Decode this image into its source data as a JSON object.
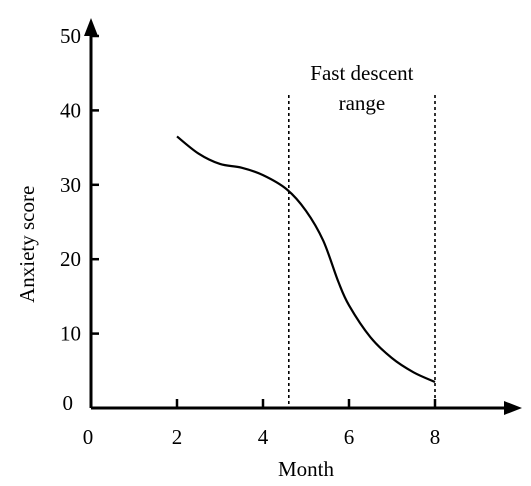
{
  "chart_data": {
    "type": "line",
    "title": "",
    "xlabel": "Month",
    "ylabel": "Anxiety score",
    "xlim": [
      0,
      9.6
    ],
    "ylim": [
      0,
      53
    ],
    "x_ticks": [
      2,
      4,
      6,
      8
    ],
    "y_ticks": [
      10,
      20,
      30,
      40,
      50
    ],
    "origin_x_label": "0",
    "origin_y_label": "0",
    "series": [
      {
        "points": [
          [
            2.0,
            36.5
          ],
          [
            2.5,
            34.2
          ],
          [
            3.0,
            32.8
          ],
          [
            3.5,
            32.3
          ],
          [
            4.0,
            31.3
          ],
          [
            4.55,
            29.4
          ],
          [
            5.0,
            26.5
          ],
          [
            5.4,
            22.5
          ],
          [
            5.75,
            17.0
          ],
          [
            6.0,
            13.8
          ],
          [
            6.5,
            9.5
          ],
          [
            7.0,
            6.7
          ],
          [
            7.5,
            4.8
          ],
          [
            8.0,
            3.5
          ]
        ]
      }
    ],
    "annotation": {
      "lines": [
        "Fast descent",
        "range"
      ],
      "x_start": 4.6,
      "x_end": 8.0
    },
    "grid": false,
    "legend": "none",
    "line_color": "#000000"
  }
}
